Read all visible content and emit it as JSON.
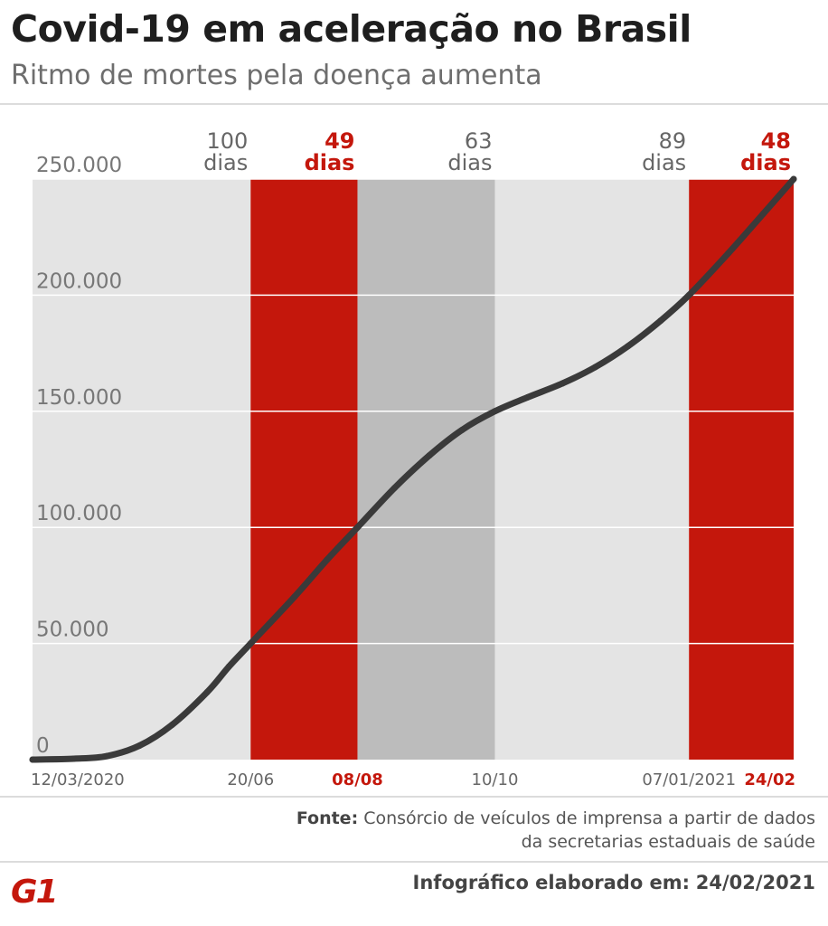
{
  "header": {
    "title": "Covid-19 em aceleração no Brasil",
    "subtitle": "Ritmo de mortes pela doença aumenta"
  },
  "colors": {
    "background_band": "#e4e4e4",
    "highlight_band": "#c4170c",
    "dark_band": "#bcbcbc",
    "line": "#3a3a3a",
    "grid": "#ffffff",
    "axis_text": "#777777"
  },
  "chart_data": {
    "type": "line",
    "ylim": [
      0,
      250000
    ],
    "y_ticks": [
      {
        "value": 0,
        "label": "0"
      },
      {
        "value": 50000,
        "label": "50.000"
      },
      {
        "value": 100000,
        "label": "100.000"
      },
      {
        "value": 150000,
        "label": "150.000"
      },
      {
        "value": 200000,
        "label": "200.000"
      },
      {
        "value": 250000,
        "label": "250.000"
      }
    ],
    "x_range": [
      "2020-03-12",
      "2021-02-24"
    ],
    "x_ticks": [
      {
        "date": "2020-03-12",
        "label": "12/03/2020",
        "highlight": false
      },
      {
        "date": "2020-06-20",
        "label": "20/06",
        "highlight": false
      },
      {
        "date": "2020-08-08",
        "label": "08/08",
        "highlight": true
      },
      {
        "date": "2020-10-10",
        "label": "10/10",
        "highlight": false
      },
      {
        "date": "2021-01-07",
        "label": "07/01/2021",
        "highlight": false
      },
      {
        "date": "2021-02-24",
        "label": "24/02",
        "highlight": true
      }
    ],
    "periods": [
      {
        "start": "2020-03-12",
        "end": "2020-06-20",
        "label_top": "100",
        "label_bottom": "dias",
        "style": "light"
      },
      {
        "start": "2020-06-20",
        "end": "2020-08-08",
        "label_top": "49",
        "label_bottom": "dias",
        "style": "red"
      },
      {
        "start": "2020-08-08",
        "end": "2020-10-10",
        "label_top": "63",
        "label_bottom": "dias",
        "style": "dark"
      },
      {
        "start": "2020-10-10",
        "end": "2021-01-07",
        "label_top": "89",
        "label_bottom": "dias",
        "style": "light"
      },
      {
        "start": "2021-01-07",
        "end": "2021-02-24",
        "label_top": "48",
        "label_bottom": "dias",
        "style": "red"
      }
    ],
    "series": [
      {
        "x": [
          "2020-03-12",
          "2020-03-31",
          "2020-04-15",
          "2020-04-30",
          "2020-05-15",
          "2020-05-31",
          "2020-06-10",
          "2020-06-20",
          "2020-07-10",
          "2020-07-25",
          "2020-08-08",
          "2020-08-25",
          "2020-09-10",
          "2020-09-25",
          "2020-10-10",
          "2020-10-25",
          "2020-11-10",
          "2020-11-25",
          "2020-12-10",
          "2020-12-25",
          "2021-01-07",
          "2021-01-25",
          "2021-02-10",
          "2021-02-24"
        ],
        "y": [
          0,
          400,
          1500,
          6000,
          15000,
          29000,
          40000,
          50000,
          70000,
          86000,
          100000,
          117000,
          131000,
          142000,
          150000,
          156000,
          162000,
          169000,
          178000,
          189000,
          200000,
          218000,
          235000,
          250000
        ]
      }
    ]
  },
  "footer": {
    "source_label": "Fonte:",
    "source_line1": "Consórcio de veículos de imprensa a partir de dados",
    "source_line2": "da secretarias estaduais de saúde",
    "logo_text": "G1",
    "made_label": "Infográfico elaborado em:",
    "made_date": "24/02/2021"
  }
}
